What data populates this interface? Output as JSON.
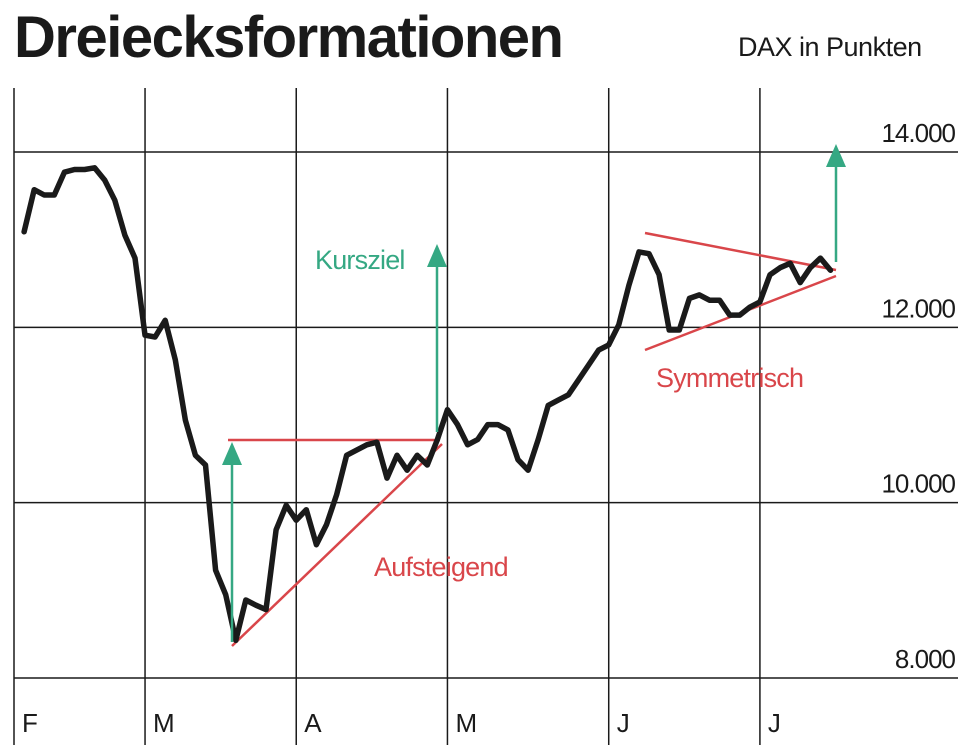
{
  "chart_data": {
    "type": "line",
    "title": "Dreiecksformationen",
    "subtitle": "DAX in Punkten",
    "categories": [
      "F",
      null,
      null,
      null,
      null,
      null,
      null,
      null,
      null,
      null,
      null,
      null,
      null,
      "M",
      null,
      null,
      null,
      null,
      null,
      null,
      null,
      null,
      null,
      null,
      null,
      null,
      null,
      null,
      "A",
      null,
      null,
      null,
      null,
      null,
      null,
      null,
      null,
      null,
      null,
      null,
      null,
      null,
      null,
      "M",
      null,
      null,
      null,
      null,
      null,
      null,
      null,
      null,
      null,
      null,
      null,
      null,
      null,
      null,
      null,
      "J",
      null,
      null,
      null,
      null,
      null,
      null,
      null,
      null,
      null,
      null,
      null,
      null,
      null,
      null,
      "J",
      null,
      null,
      null,
      null,
      null,
      null,
      null
    ],
    "values": [
      null,
      13090,
      13570,
      13510,
      13510,
      13770,
      13800,
      13800,
      13820,
      13680,
      13450,
      13050,
      12790,
      11910,
      11890,
      12080,
      11630,
      10940,
      10540,
      10430,
      9230,
      8950,
      8430,
      8890,
      8830,
      8780,
      9690,
      9970,
      9800,
      9920,
      9520,
      9750,
      10090,
      10540,
      10600,
      10660,
      10690,
      10280,
      10540,
      10370,
      10540,
      10430,
      10720,
      11060,
      10890,
      10660,
      10720,
      10890,
      10890,
      10830,
      10490,
      10370,
      10720,
      11110,
      11170,
      11230,
      11400,
      11570,
      11740,
      11800,
      12030,
      12480,
      12860,
      12840,
      12600,
      11970,
      11970,
      12330,
      12370,
      12310,
      12310,
      12140,
      12140,
      12230,
      12290,
      12600,
      12680,
      12730,
      12510,
      12680,
      12790,
      12650
    ],
    "color": "#1a1a1a",
    "ylim": [
      8000,
      14000
    ],
    "yticks": [
      {
        "value": 8000,
        "label": "8.000"
      },
      {
        "value": 10000,
        "label": "10.000"
      },
      {
        "value": 12000,
        "label": "12.000"
      },
      {
        "value": 14000,
        "label": "14.000"
      }
    ],
    "grid": true,
    "annotations": [
      "Kursziel",
      "Aufsteigend",
      "Symmetrisch"
    ]
  }
}
